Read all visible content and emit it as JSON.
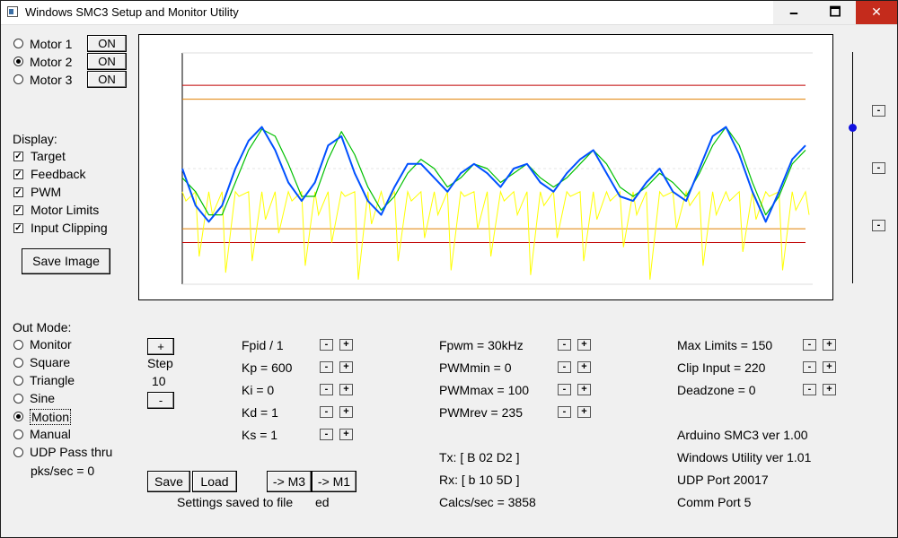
{
  "window": {
    "title": "Windows SMC3 Setup and Monitor Utility",
    "min_label": "🗕",
    "max_label": "🗖",
    "close_label": "✕"
  },
  "motors": [
    {
      "label": "Motor 1",
      "selected": false,
      "btn": "ON"
    },
    {
      "label": "Motor 2",
      "selected": true,
      "btn": "ON"
    },
    {
      "label": "Motor 3",
      "selected": false,
      "btn": "ON"
    }
  ],
  "display": {
    "heading": "Display:",
    "items": [
      {
        "label": "Target",
        "checked": true
      },
      {
        "label": "Feedback",
        "checked": true
      },
      {
        "label": "PWM",
        "checked": true
      },
      {
        "label": "Motor Limits",
        "checked": true
      },
      {
        "label": "Input Clipping",
        "checked": true
      }
    ],
    "save_image": "Save Image"
  },
  "out_mode": {
    "heading": "Out Mode:",
    "items": [
      {
        "label": "Monitor",
        "selected": false
      },
      {
        "label": "Square",
        "selected": false
      },
      {
        "label": "Triangle",
        "selected": false
      },
      {
        "label": "Sine",
        "selected": false
      },
      {
        "label": "Motion",
        "selected": true
      },
      {
        "label": "Manual",
        "selected": false
      },
      {
        "label": "UDP Pass thru",
        "selected": false
      }
    ],
    "pks": "pks/sec = 0"
  },
  "step": {
    "plus": "+",
    "label": "Step",
    "value": "10",
    "minus": "-"
  },
  "params_col1": [
    "Fpid / 1",
    "Kp = 600",
    "Ki = 0",
    "Kd = 1",
    "Ks = 1"
  ],
  "params_col2": [
    "Fpwm = 30kHz",
    "PWMmin = 0",
    "PWMmax = 100",
    "PWMrev = 235"
  ],
  "params_col3": [
    "Max Limits = 150",
    "Clip Input = 220",
    "Deadzone = 0"
  ],
  "status_mid": [
    "Tx: [ B 02 D2 ]",
    "Rx: [ b 10 5D ]",
    "Calcs/sec = 3858"
  ],
  "status_right": [
    "Arduino SMC3 ver 1.00",
    "Windows Utility ver 1.01",
    "UDP Port 20017",
    "Comm Port 5"
  ],
  "bottom": {
    "save": "Save",
    "load": "Load",
    "to_m3": "-> M3",
    "to_m1": "-> M1",
    "message": "Settings saved to file",
    "message_tail": "ed"
  },
  "side_buttons": [
    "-",
    "-",
    "-"
  ],
  "colors": {
    "target": "#00c000",
    "feedback": "#0050ff",
    "pwm": "#ffff00",
    "limits": "#c00000",
    "clip": "#e08000",
    "accent": "#1010e0"
  },
  "chart_data": {
    "type": "line",
    "series": [
      {
        "values": [
          0.46,
          0.4,
          0.3,
          0.3,
          0.44,
          0.58,
          0.67,
          0.64,
          0.52,
          0.38,
          0.38,
          0.54,
          0.66,
          0.56,
          0.42,
          0.32,
          0.38,
          0.48,
          0.54,
          0.5,
          0.42,
          0.46,
          0.52,
          0.5,
          0.44,
          0.48,
          0.52,
          0.46,
          0.42,
          0.46,
          0.52,
          0.58,
          0.52,
          0.42,
          0.38,
          0.42,
          0.48,
          0.44,
          0.38,
          0.48,
          0.6,
          0.68,
          0.6,
          0.44,
          0.3,
          0.38,
          0.52,
          0.58
        ]
      },
      {
        "values": [
          0.5,
          0.34,
          0.27,
          0.34,
          0.5,
          0.62,
          0.68,
          0.58,
          0.44,
          0.36,
          0.44,
          0.6,
          0.64,
          0.48,
          0.36,
          0.3,
          0.42,
          0.52,
          0.52,
          0.46,
          0.4,
          0.48,
          0.52,
          0.48,
          0.42,
          0.5,
          0.52,
          0.44,
          0.4,
          0.48,
          0.54,
          0.58,
          0.48,
          0.38,
          0.36,
          0.44,
          0.5,
          0.4,
          0.36,
          0.5,
          0.64,
          0.68,
          0.56,
          0.4,
          0.27,
          0.4,
          0.54,
          0.6
        ]
      }
    ],
    "pwm": [
      0.36,
      0.12,
      0.3,
      0.05,
      0.38,
      0.1,
      0.28,
      0.22,
      0.36,
      0.08,
      0.3,
      0.18,
      0.38,
      0.02,
      0.26,
      0.34,
      0.1,
      0.36,
      0.2,
      0.3,
      0.06,
      0.38,
      0.24,
      0.12,
      0.36,
      0.3,
      0.04,
      0.34,
      0.2,
      0.38,
      0.1,
      0.28,
      0.36,
      0.16,
      0.3,
      0.02,
      0.38,
      0.24,
      0.34,
      0.08,
      0.3,
      0.36,
      0.14,
      0.28,
      0.38,
      0.06,
      0.32,
      0.3
    ],
    "limits": [
      0.86,
      0.18
    ],
    "clip": [
      0.8,
      0.24
    ],
    "ylim": [
      0,
      1
    ]
  }
}
